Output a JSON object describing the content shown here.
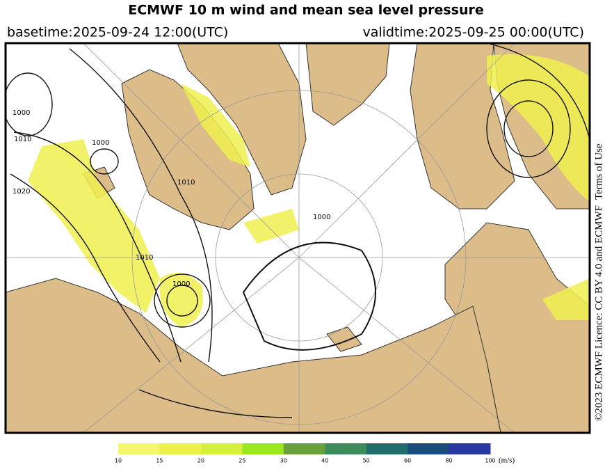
{
  "header": {
    "title": "ECMWF 10 m wind and mean sea level pressure",
    "basetime": "basetime:2025-09-24 12:00(UTC)",
    "validtime": "validtime:2025-09-25 00:00(UTC)"
  },
  "map": {
    "isobar_labels": [
      "1000",
      "1010",
      "1020",
      "1000",
      "1010",
      "1000",
      "1010",
      "1000"
    ]
  },
  "credit": {
    "text": "©2023 ECMWF Licence: CC BY 4.0 and ECMWF",
    "link": "Terms of Use"
  },
  "colorbar": {
    "ticks": [
      10,
      15,
      20,
      25,
      30,
      40,
      50,
      60,
      80,
      100
    ],
    "colors": [
      "#f6f66e",
      "#eef04a",
      "#d4f03a",
      "#9ae81e",
      "#6aa03c",
      "#3c8c5c",
      "#206e6c",
      "#1c4c7c",
      "#2a38a4"
    ],
    "unit": "(m/s)"
  }
}
